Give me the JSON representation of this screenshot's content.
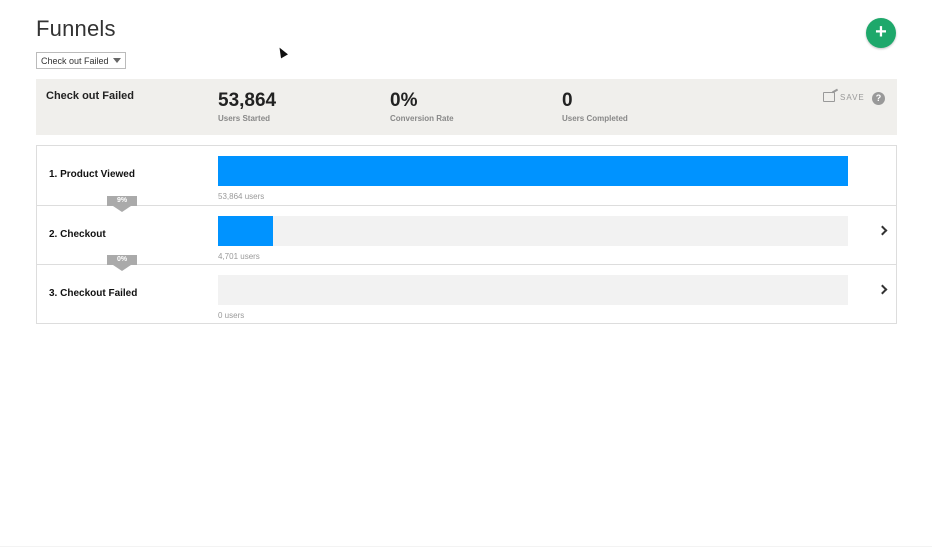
{
  "header": {
    "title": "Funnels",
    "add_label": "+"
  },
  "funnel_select": {
    "value": "Check out Failed"
  },
  "summary": {
    "name": "Check out Failed",
    "stats": [
      {
        "value": "53,864",
        "label": "Users Started"
      },
      {
        "value": "0%",
        "label": "Conversion Rate"
      },
      {
        "value": "0",
        "label": "Users Completed"
      }
    ],
    "save_label": "SAVE",
    "help_label": "?"
  },
  "steps": [
    {
      "label": "1.  Product Viewed",
      "users": "53,864 users",
      "fraction": 1.0
    },
    {
      "label": "2.  Checkout",
      "users": "4,701 users",
      "fraction": 0.087
    },
    {
      "label": "3.  Checkout Failed",
      "users": "0 users",
      "fraction": 0.0
    }
  ],
  "conversions": [
    {
      "label": "9%"
    },
    {
      "label": "0%"
    }
  ],
  "colors": {
    "accent": "#0093ff",
    "add_button": "#1ea86b",
    "summary_bg": "#f0efec"
  }
}
